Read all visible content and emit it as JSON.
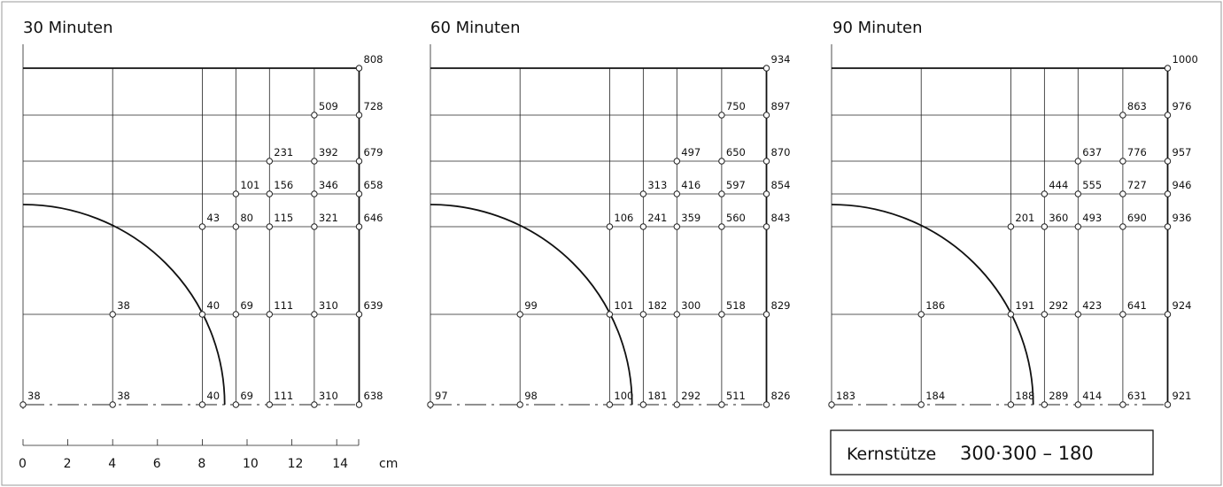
{
  "caption": {
    "label": "Kernstütze",
    "dims": "300·300 – 180"
  },
  "scale": {
    "ticks": [
      "0",
      "2",
      "4",
      "6",
      "8",
      "10",
      "12",
      "14"
    ],
    "unit": "cm"
  },
  "panels": [
    {
      "title": "30 Minuten",
      "rows": [
        [
          {
            "col": 5,
            "v": "808"
          }
        ],
        [
          {
            "col": 4,
            "v": "509"
          },
          {
            "col": 5,
            "v": "728"
          }
        ],
        [
          {
            "col": 3,
            "v": "231"
          },
          {
            "col": 4,
            "v": "392"
          },
          {
            "col": 5,
            "v": "679"
          }
        ],
        [
          {
            "col": 2,
            "v": "101"
          },
          {
            "col": 3,
            "v": "156"
          },
          {
            "col": 4,
            "v": "346"
          },
          {
            "col": 5,
            "v": "658"
          }
        ],
        [
          {
            "col": 1,
            "v": "43"
          },
          {
            "col": 2,
            "v": "80"
          },
          {
            "col": 3,
            "v": "115"
          },
          {
            "col": 4,
            "v": "321"
          },
          {
            "col": 5,
            "v": "646"
          }
        ],
        [
          {
            "col": 0,
            "v": "38"
          },
          {
            "col": 1,
            "v": "40"
          },
          {
            "col": 2,
            "v": "69"
          },
          {
            "col": 3,
            "v": "111"
          },
          {
            "col": 4,
            "v": "310"
          },
          {
            "col": 5,
            "v": "639"
          }
        ],
        [
          {
            "col": -1,
            "v": "38"
          },
          {
            "col": 0,
            "v": "38"
          },
          {
            "col": 1,
            "v": "40"
          },
          {
            "col": 2,
            "v": "69"
          },
          {
            "col": 3,
            "v": "111"
          },
          {
            "col": 4,
            "v": "310"
          },
          {
            "col": 5,
            "v": "638"
          }
        ]
      ]
    },
    {
      "title": "60 Minuten",
      "rows": [
        [
          {
            "col": 5,
            "v": "934"
          }
        ],
        [
          {
            "col": 4,
            "v": "750"
          },
          {
            "col": 5,
            "v": "897"
          }
        ],
        [
          {
            "col": 3,
            "v": "497"
          },
          {
            "col": 4,
            "v": "650"
          },
          {
            "col": 5,
            "v": "870"
          }
        ],
        [
          {
            "col": 2,
            "v": "313"
          },
          {
            "col": 3,
            "v": "416"
          },
          {
            "col": 4,
            "v": "597"
          },
          {
            "col": 5,
            "v": "854"
          }
        ],
        [
          {
            "col": 1,
            "v": "106"
          },
          {
            "col": 2,
            "v": "241"
          },
          {
            "col": 3,
            "v": "359"
          },
          {
            "col": 4,
            "v": "560"
          },
          {
            "col": 5,
            "v": "843"
          }
        ],
        [
          {
            "col": 0,
            "v": "99"
          },
          {
            "col": 1,
            "v": "101"
          },
          {
            "col": 2,
            "v": "182"
          },
          {
            "col": 3,
            "v": "300"
          },
          {
            "col": 4,
            "v": "518"
          },
          {
            "col": 5,
            "v": "829"
          }
        ],
        [
          {
            "col": -1,
            "v": "97"
          },
          {
            "col": 0,
            "v": "98"
          },
          {
            "col": 1,
            "v": "100"
          },
          {
            "col": 2,
            "v": "181"
          },
          {
            "col": 3,
            "v": "292"
          },
          {
            "col": 4,
            "v": "511"
          },
          {
            "col": 5,
            "v": "826"
          }
        ]
      ]
    },
    {
      "title": "90 Minuten",
      "rows": [
        [
          {
            "col": 5,
            "v": "1000"
          }
        ],
        [
          {
            "col": 4,
            "v": "863"
          },
          {
            "col": 5,
            "v": "976"
          }
        ],
        [
          {
            "col": 3,
            "v": "637"
          },
          {
            "col": 4,
            "v": "776"
          },
          {
            "col": 5,
            "v": "957"
          }
        ],
        [
          {
            "col": 2,
            "v": "444"
          },
          {
            "col": 3,
            "v": "555"
          },
          {
            "col": 4,
            "v": "727"
          },
          {
            "col": 5,
            "v": "946"
          }
        ],
        [
          {
            "col": 1,
            "v": "201"
          },
          {
            "col": 2,
            "v": "360"
          },
          {
            "col": 3,
            "v": "493"
          },
          {
            "col": 4,
            "v": "690"
          },
          {
            "col": 5,
            "v": "936"
          }
        ],
        [
          {
            "col": 0,
            "v": "186"
          },
          {
            "col": 1,
            "v": "191"
          },
          {
            "col": 2,
            "v": "292"
          },
          {
            "col": 3,
            "v": "423"
          },
          {
            "col": 4,
            "v": "641"
          },
          {
            "col": 5,
            "v": "924"
          }
        ],
        [
          {
            "col": -1,
            "v": "183"
          },
          {
            "col": 0,
            "v": "184"
          },
          {
            "col": 1,
            "v": "188"
          },
          {
            "col": 2,
            "v": "289"
          },
          {
            "col": 3,
            "v": "414"
          },
          {
            "col": 4,
            "v": "631"
          },
          {
            "col": 5,
            "v": "921"
          }
        ]
      ]
    }
  ]
}
